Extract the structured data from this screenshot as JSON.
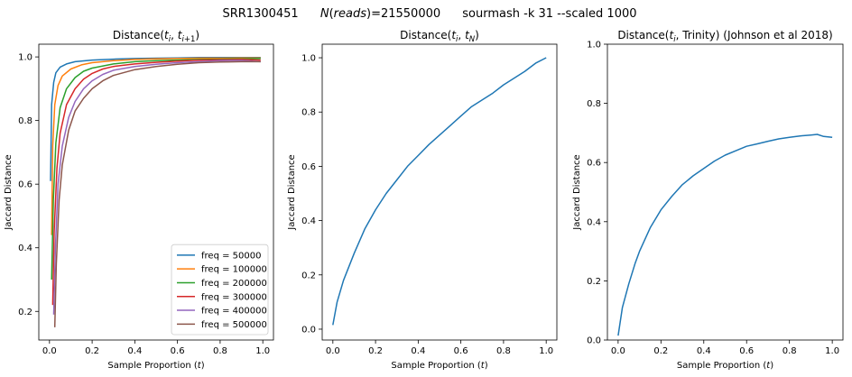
{
  "figure": {
    "suptitle_parts": [
      "SRR1300451",
      "N(reads)=21550000",
      "sourmash -k 31 --scaled 1000"
    ]
  },
  "chart_data": [
    {
      "type": "line",
      "title": "Distance(t_i, t_i+1)",
      "xlabel": "Sample Proportion (t)",
      "ylabel": "Jaccard Distance",
      "xlim": [
        -0.05,
        1.05
      ],
      "ylim": [
        0.11,
        1.04
      ],
      "xticks": [
        0.0,
        0.2,
        0.4,
        0.6,
        0.8,
        1.0
      ],
      "yticks": [
        0.2,
        0.4,
        0.6,
        0.8,
        1.0
      ],
      "legend": "bottom-right",
      "grid": false,
      "series": [
        {
          "name": "freq = 50000",
          "color": "#1f77b4",
          "points": [
            [
              0.005,
              0.61
            ],
            [
              0.01,
              0.85
            ],
            [
              0.02,
              0.92
            ],
            [
              0.03,
              0.95
            ],
            [
              0.05,
              0.968
            ],
            [
              0.08,
              0.978
            ],
            [
              0.12,
              0.985
            ],
            [
              0.2,
              0.99
            ],
            [
              0.3,
              0.993
            ],
            [
              0.4,
              0.995
            ],
            [
              0.5,
              0.996
            ],
            [
              0.6,
              0.997
            ],
            [
              0.7,
              0.998
            ],
            [
              0.8,
              0.998
            ],
            [
              0.9,
              0.998
            ],
            [
              0.99,
              0.998
            ]
          ]
        },
        {
          "name": "freq = 100000",
          "color": "#ff7f0e",
          "points": [
            [
              0.01,
              0.44
            ],
            [
              0.015,
              0.72
            ],
            [
              0.025,
              0.85
            ],
            [
              0.04,
              0.91
            ],
            [
              0.06,
              0.94
            ],
            [
              0.1,
              0.962
            ],
            [
              0.15,
              0.975
            ],
            [
              0.2,
              0.982
            ],
            [
              0.3,
              0.988
            ],
            [
              0.4,
              0.992
            ],
            [
              0.5,
              0.994
            ],
            [
              0.6,
              0.995
            ],
            [
              0.7,
              0.996
            ],
            [
              0.8,
              0.996
            ],
            [
              0.9,
              0.997
            ],
            [
              0.99,
              0.997
            ]
          ]
        },
        {
          "name": "freq = 200000",
          "color": "#2ca02c",
          "points": [
            [
              0.01,
              0.3
            ],
            [
              0.018,
              0.55
            ],
            [
              0.03,
              0.73
            ],
            [
              0.05,
              0.84
            ],
            [
              0.08,
              0.9
            ],
            [
              0.12,
              0.935
            ],
            [
              0.16,
              0.955
            ],
            [
              0.2,
              0.965
            ],
            [
              0.3,
              0.978
            ],
            [
              0.4,
              0.985
            ],
            [
              0.5,
              0.988
            ],
            [
              0.6,
              0.99
            ],
            [
              0.7,
              0.992
            ],
            [
              0.8,
              0.993
            ],
            [
              0.9,
              0.994
            ],
            [
              0.99,
              0.995
            ]
          ]
        },
        {
          "name": "freq = 300000",
          "color": "#d62728",
          "points": [
            [
              0.015,
              0.22
            ],
            [
              0.022,
              0.45
            ],
            [
              0.035,
              0.65
            ],
            [
              0.05,
              0.76
            ],
            [
              0.08,
              0.85
            ],
            [
              0.12,
              0.9
            ],
            [
              0.16,
              0.93
            ],
            [
              0.2,
              0.948
            ],
            [
              0.25,
              0.962
            ],
            [
              0.3,
              0.97
            ],
            [
              0.4,
              0.978
            ],
            [
              0.5,
              0.983
            ],
            [
              0.6,
              0.987
            ],
            [
              0.7,
              0.99
            ],
            [
              0.8,
              0.991
            ],
            [
              0.9,
              0.992
            ],
            [
              0.99,
              0.99
            ]
          ]
        },
        {
          "name": "freq = 400000",
          "color": "#9467bd",
          "points": [
            [
              0.02,
              0.19
            ],
            [
              0.028,
              0.4
            ],
            [
              0.04,
              0.6
            ],
            [
              0.06,
              0.72
            ],
            [
              0.09,
              0.81
            ],
            [
              0.12,
              0.86
            ],
            [
              0.16,
              0.9
            ],
            [
              0.2,
              0.925
            ],
            [
              0.25,
              0.945
            ],
            [
              0.3,
              0.958
            ],
            [
              0.4,
              0.97
            ],
            [
              0.5,
              0.977
            ],
            [
              0.6,
              0.982
            ],
            [
              0.7,
              0.985
            ],
            [
              0.8,
              0.988
            ],
            [
              0.9,
              0.989
            ],
            [
              0.99,
              0.985
            ]
          ]
        },
        {
          "name": "freq = 500000",
          "color": "#8c564b",
          "points": [
            [
              0.025,
              0.15
            ],
            [
              0.032,
              0.35
            ],
            [
              0.045,
              0.55
            ],
            [
              0.06,
              0.66
            ],
            [
              0.09,
              0.77
            ],
            [
              0.12,
              0.83
            ],
            [
              0.16,
              0.87
            ],
            [
              0.2,
              0.9
            ],
            [
              0.25,
              0.925
            ],
            [
              0.3,
              0.942
            ],
            [
              0.4,
              0.96
            ],
            [
              0.5,
              0.97
            ],
            [
              0.6,
              0.977
            ],
            [
              0.7,
              0.982
            ],
            [
              0.8,
              0.984
            ],
            [
              0.9,
              0.985
            ],
            [
              0.99,
              0.985
            ]
          ]
        }
      ]
    },
    {
      "type": "line",
      "title": "Distance(t_i, t_N)",
      "xlabel": "Sample Proportion (t)",
      "ylabel": "Jaccard Distance",
      "xlim": [
        -0.05,
        1.05
      ],
      "ylim": [
        -0.04,
        1.05
      ],
      "xticks": [
        0.0,
        0.2,
        0.4,
        0.6,
        0.8,
        1.0
      ],
      "yticks": [
        0.0,
        0.2,
        0.4,
        0.6,
        0.8,
        1.0
      ],
      "grid": false,
      "series": [
        {
          "color": "#1f77b4",
          "points": [
            [
              0.0,
              0.015
            ],
            [
              0.02,
              0.1
            ],
            [
              0.05,
              0.18
            ],
            [
              0.1,
              0.28
            ],
            [
              0.15,
              0.37
            ],
            [
              0.2,
              0.44
            ],
            [
              0.25,
              0.5
            ],
            [
              0.3,
              0.55
            ],
            [
              0.35,
              0.6
            ],
            [
              0.4,
              0.64
            ],
            [
              0.45,
              0.68
            ],
            [
              0.5,
              0.715
            ],
            [
              0.55,
              0.75
            ],
            [
              0.6,
              0.785
            ],
            [
              0.65,
              0.82
            ],
            [
              0.7,
              0.845
            ],
            [
              0.75,
              0.87
            ],
            [
              0.8,
              0.9
            ],
            [
              0.85,
              0.925
            ],
            [
              0.9,
              0.95
            ],
            [
              0.95,
              0.98
            ],
            [
              1.0,
              1.0
            ]
          ]
        }
      ]
    },
    {
      "type": "line",
      "title": "Distance(t_i, Trinity) (Johnson et al 2018)",
      "xlabel": "Sample Proportion (t)",
      "ylabel": "Jaccard Distance",
      "xlim": [
        -0.05,
        1.05
      ],
      "ylim": [
        0.0,
        1.0
      ],
      "xticks": [
        0.0,
        0.2,
        0.4,
        0.6,
        0.8,
        1.0
      ],
      "yticks": [
        0.0,
        0.2,
        0.4,
        0.6,
        0.8,
        1.0
      ],
      "grid": false,
      "series": [
        {
          "color": "#1f77b4",
          "points": [
            [
              0.0,
              0.015
            ],
            [
              0.02,
              0.11
            ],
            [
              0.05,
              0.19
            ],
            [
              0.08,
              0.26
            ],
            [
              0.1,
              0.3
            ],
            [
              0.15,
              0.38
            ],
            [
              0.2,
              0.44
            ],
            [
              0.25,
              0.485
            ],
            [
              0.3,
              0.525
            ],
            [
              0.35,
              0.555
            ],
            [
              0.4,
              0.58
            ],
            [
              0.45,
              0.605
            ],
            [
              0.5,
              0.625
            ],
            [
              0.55,
              0.64
            ],
            [
              0.6,
              0.655
            ],
            [
              0.65,
              0.663
            ],
            [
              0.7,
              0.672
            ],
            [
              0.75,
              0.68
            ],
            [
              0.8,
              0.685
            ],
            [
              0.85,
              0.69
            ],
            [
              0.9,
              0.693
            ],
            [
              0.93,
              0.695
            ],
            [
              0.96,
              0.688
            ],
            [
              1.0,
              0.685
            ]
          ]
        }
      ]
    }
  ]
}
